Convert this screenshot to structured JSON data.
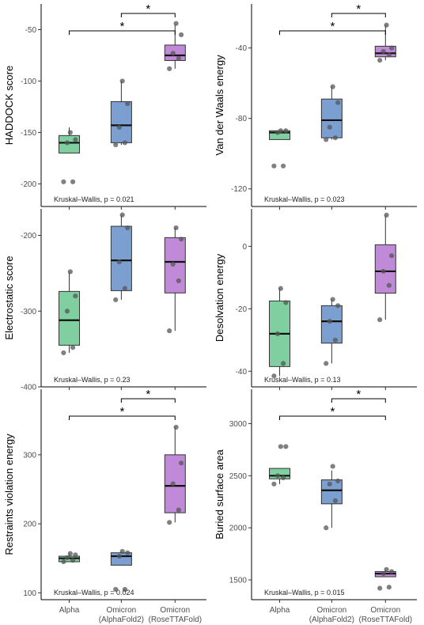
{
  "chart_data": [
    {
      "type": "box",
      "ylabel": "HADDOCK score",
      "ylim": [
        -222,
        -25
      ],
      "yticks": [
        -200,
        -150,
        -100,
        -50
      ],
      "pvalue_text": "Kruskal–Wallis, p = 0.021",
      "boxes": [
        {
          "category": "Alpha",
          "q1": -170,
          "median": -160,
          "q3": -153,
          "whisker_low": -170,
          "whisker_high": -145,
          "points": [
            -198,
            -198,
            -160,
            -157,
            -150
          ],
          "color": "#7fcfa0"
        },
        {
          "category": "Omicron (AlphaFold2)",
          "q1": -160,
          "median": -143,
          "q3": -120,
          "whisker_low": -162,
          "whisker_high": -100,
          "points": [
            -162,
            -160,
            -145,
            -122,
            -100
          ],
          "color": "#7b9fd0"
        },
        {
          "category": "Omicron (RoseTTAFold)",
          "q1": -80,
          "median": -75,
          "q3": -65,
          "whisker_low": -88,
          "whisker_high": -45,
          "points": [
            -88,
            -78,
            -73,
            -55,
            -44
          ],
          "color": "#c08ad8"
        }
      ],
      "brackets": [
        {
          "from": "Omicron (AlphaFold2)",
          "to": "Omicron (RoseTTAFold)",
          "label": "*"
        },
        {
          "from": "Alpha",
          "to": "Omicron (RoseTTAFold)",
          "label": "*"
        }
      ]
    },
    {
      "type": "box",
      "ylabel": "Van der Waals energy",
      "ylim": [
        -130,
        -15
      ],
      "yticks": [
        -120,
        -80,
        -40
      ],
      "pvalue_text": "Kruskal–Wallis, p = 0.023",
      "boxes": [
        {
          "category": "Alpha",
          "q1": -92,
          "median": -88,
          "q3": -87,
          "whisker_low": -92,
          "whisker_high": -87,
          "points": [
            -107,
            -107,
            -88,
            -87,
            -87
          ],
          "color": "#7fcfa0"
        },
        {
          "category": "Omicron (AlphaFold2)",
          "q1": -91,
          "median": -81,
          "q3": -69,
          "whisker_low": -92,
          "whisker_high": -62,
          "points": [
            -92,
            -91,
            -85,
            -71,
            -62
          ],
          "color": "#7b9fd0"
        },
        {
          "category": "Omicron (RoseTTAFold)",
          "q1": -45,
          "median": -43,
          "q3": -39,
          "whisker_low": -47,
          "whisker_high": -27,
          "points": [
            -47,
            -44,
            -42,
            -40,
            -27
          ],
          "color": "#c08ad8"
        }
      ],
      "brackets": [
        {
          "from": "Omicron (AlphaFold2)",
          "to": "Omicron (RoseTTAFold)",
          "label": "*"
        },
        {
          "from": "Alpha",
          "to": "Omicron (RoseTTAFold)",
          "label": "*"
        }
      ]
    },
    {
      "type": "box",
      "ylabel": "Electrostatic score",
      "ylim": [
        -400,
        -165
      ],
      "yticks": [
        -400,
        -300,
        -200
      ],
      "pvalue_text": "Kruskal–Wallis, p = 0.23",
      "boxes": [
        {
          "category": "Alpha",
          "q1": -345,
          "median": -312,
          "q3": -274,
          "whisker_low": -355,
          "whisker_high": -248,
          "points": [
            -355,
            -348,
            -300,
            -280,
            -248
          ],
          "color": "#7fcfa0"
        },
        {
          "category": "Omicron (AlphaFold2)",
          "q1": -273,
          "median": -233,
          "q3": -188,
          "whisker_low": -285,
          "whisker_high": -173,
          "points": [
            -285,
            -270,
            -235,
            -190,
            -173
          ],
          "color": "#7b9fd0"
        },
        {
          "category": "Omicron (RoseTTAFold)",
          "q1": -276,
          "median": -235,
          "q3": -203,
          "whisker_low": -326,
          "whisker_high": -190,
          "points": [
            -326,
            -260,
            -238,
            -205,
            -190
          ],
          "color": "#c08ad8"
        }
      ],
      "brackets": []
    },
    {
      "type": "box",
      "ylabel": "Desolvation energy",
      "ylim": [
        -45,
        12
      ],
      "yticks": [
        -40,
        -20,
        0
      ],
      "pvalue_text": "Kruskal–Wallis, p = 0.13",
      "boxes": [
        {
          "category": "Alpha",
          "q1": -38.5,
          "median": -28,
          "q3": -17.5,
          "whisker_low": -41.5,
          "whisker_high": -13.5,
          "points": [
            -41.5,
            -37.5,
            -28,
            -18,
            -13.5
          ],
          "color": "#7fcfa0"
        },
        {
          "category": "Omicron (AlphaFold2)",
          "q1": -31,
          "median": -24,
          "q3": -19,
          "whisker_low": -37.5,
          "whisker_high": -17,
          "points": [
            -37.5,
            -30,
            -24,
            -19,
            -17
          ],
          "color": "#7b9fd0"
        },
        {
          "category": "Omicron (RoseTTAFold)",
          "q1": -15,
          "median": -8,
          "q3": 0.5,
          "whisker_low": -23.5,
          "whisker_high": 10,
          "points": [
            -23.5,
            -12.5,
            -8,
            -3,
            10
          ],
          "color": "#c08ad8"
        }
      ],
      "brackets": []
    },
    {
      "type": "box",
      "ylabel": "Restraints violation energy",
      "ylim": [
        90,
        395
      ],
      "yticks": [
        100,
        200,
        300
      ],
      "pvalue_text": "Kruskal–Wallis, p = 0.024",
      "boxes": [
        {
          "category": "Alpha",
          "q1": 145,
          "median": 150,
          "q3": 153,
          "whisker_low": 145,
          "whisker_high": 157,
          "points": [
            145,
            147,
            151,
            155,
            157
          ],
          "color": "#7fcfa0"
        },
        {
          "category": "Omicron (AlphaFold2)",
          "q1": 140,
          "median": 153,
          "q3": 158,
          "whisker_low": 140,
          "whisker_high": 160,
          "points": [
            105,
            105,
            153,
            158,
            160
          ],
          "color": "#7b9fd0"
        },
        {
          "category": "Omicron (RoseTTAFold)",
          "q1": 216,
          "median": 255,
          "q3": 300,
          "whisker_low": 202,
          "whisker_high": 340,
          "points": [
            202,
            220,
            258,
            288,
            340
          ],
          "color": "#c08ad8"
        }
      ],
      "brackets": [
        {
          "from": "Omicron (AlphaFold2)",
          "to": "Omicron (RoseTTAFold)",
          "label": "*"
        },
        {
          "from": "Alpha",
          "to": "Omicron (RoseTTAFold)",
          "label": "*"
        }
      ]
    },
    {
      "type": "box",
      "ylabel": "Buried surface area",
      "ylim": [
        1310,
        3330
      ],
      "yticks": [
        1500,
        2000,
        2500,
        3000
      ],
      "pvalue_text": "Kruskal–Wallis, p = 0.015",
      "boxes": [
        {
          "category": "Alpha",
          "q1": 2470,
          "median": 2500,
          "q3": 2570,
          "whisker_low": 2420,
          "whisker_high": 2570,
          "points": [
            2420,
            2480,
            2500,
            2780,
            2780
          ],
          "color": "#7fcfa0"
        },
        {
          "category": "Omicron (AlphaFold2)",
          "q1": 2230,
          "median": 2360,
          "q3": 2460,
          "whisker_low": 2000,
          "whisker_high": 2550,
          "points": [
            2000,
            2260,
            2420,
            2450,
            2590
          ],
          "color": "#7b9fd0"
        },
        {
          "category": "Omicron (RoseTTAFold)",
          "q1": 1530,
          "median": 1560,
          "q3": 1580,
          "whisker_low": 1530,
          "whisker_high": 1600,
          "points": [
            1420,
            1430,
            1560,
            1580,
            1600
          ],
          "color": "#c08ad8"
        }
      ],
      "brackets": [
        {
          "from": "Omicron (AlphaFold2)",
          "to": "Omicron (RoseTTAFold)",
          "label": "*"
        },
        {
          "from": "Alpha",
          "to": "Omicron (RoseTTAFold)",
          "label": "*"
        }
      ]
    }
  ],
  "x_categories": [
    {
      "line1": "Alpha",
      "line2": ""
    },
    {
      "line1": "Omicron",
      "line2": "(AlphaFold2)"
    },
    {
      "line1": "Omicron",
      "line2": "(RoseTTAFold)"
    }
  ]
}
